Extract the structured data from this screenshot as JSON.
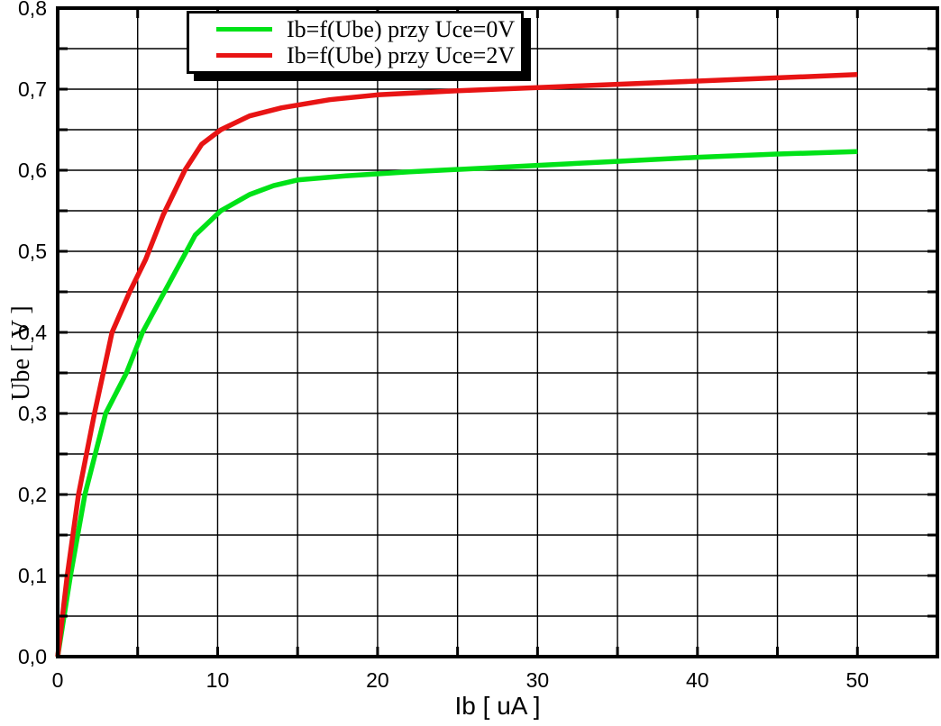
{
  "figure": {
    "background": "#ffffff",
    "frame_color": "#000000",
    "grid_color": "#000000"
  },
  "chart_data": {
    "type": "line",
    "title": "",
    "xlabel": "Ib [ uA ]",
    "ylabel": "Ube [ V ]",
    "xlim": [
      0,
      55
    ],
    "ylim": [
      0,
      0.8
    ],
    "x_major_ticks": [
      0,
      10,
      20,
      30,
      40,
      50
    ],
    "x_tick_labels": [
      "0",
      "10",
      "20",
      "30",
      "40",
      "50"
    ],
    "x_minor_step": 5,
    "y_major_ticks": [
      0,
      0.1,
      0.2,
      0.3,
      0.4,
      0.5,
      0.6,
      0.7,
      0.8
    ],
    "y_tick_labels": [
      "0,0",
      "0,1",
      "0,2",
      "0,3",
      "0,4",
      "0,5",
      "0,6",
      "0,7",
      "0,8"
    ],
    "y_minor_step": 0.05,
    "grid": true,
    "legend_position": "top-center",
    "series": [
      {
        "name": "Ib=f(Ube) przy Uce=0V",
        "color": "#00e217",
        "x": [
          0,
          0.8,
          1.7,
          3.0,
          4.3,
          5.3,
          6.4,
          7.5,
          8.6,
          10.2,
          12,
          13.5,
          15,
          18,
          22,
          26,
          30,
          35,
          40,
          45,
          50
        ],
        "y": [
          0,
          0.1,
          0.2,
          0.3,
          0.35,
          0.4,
          0.44,
          0.48,
          0.52,
          0.55,
          0.57,
          0.581,
          0.588,
          0.593,
          0.598,
          0.602,
          0.606,
          0.611,
          0.616,
          0.62,
          0.623
        ]
      },
      {
        "name": "Ib=f(Ube) przy Uce=2V",
        "color": "#e81414",
        "x": [
          0,
          0.6,
          1.3,
          2.3,
          3.4,
          4.5,
          5.5,
          6.6,
          7.95,
          9.0,
          10.2,
          12,
          14,
          17,
          20,
          25,
          30,
          35,
          40,
          45,
          50
        ],
        "y": [
          0,
          0.1,
          0.2,
          0.3,
          0.4,
          0.45,
          0.49,
          0.545,
          0.6,
          0.632,
          0.65,
          0.667,
          0.677,
          0.687,
          0.693,
          0.698,
          0.702,
          0.706,
          0.71,
          0.714,
          0.718
        ]
      }
    ]
  }
}
